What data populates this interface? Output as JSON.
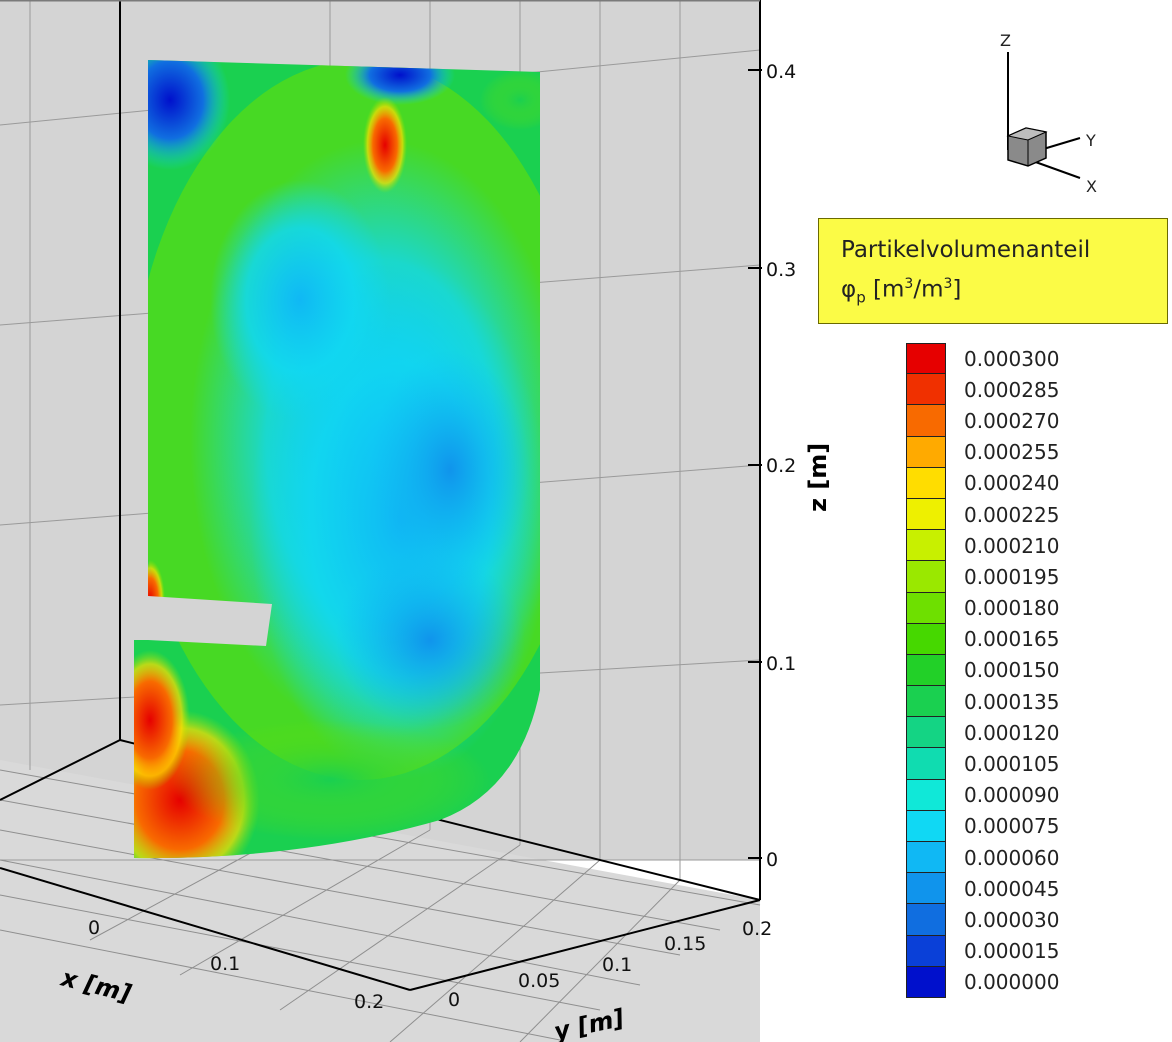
{
  "chart_data": {
    "type": "heatmap",
    "title": "",
    "xlabel": "x [m]",
    "ylabel": "y [m]",
    "zlabel": "z [m]",
    "x_ticks": [
      "0",
      "0.1",
      "0.2"
    ],
    "y_ticks": [
      "0",
      "0.05",
      "0.1",
      "0.15",
      "0.2"
    ],
    "z_ticks": [
      "0",
      "0.1",
      "0.2",
      "0.3",
      "0.4"
    ],
    "zlim": [
      0,
      0.4
    ],
    "grid": true,
    "legend": {
      "title_line1": "Partikelvolumenanteil",
      "title_line2_symbol": "φ",
      "title_line2_sub": "p",
      "title_line2_unit_a": " [m",
      "title_line2_sup_a": "3",
      "title_line2_unit_b": "/m",
      "title_line2_sup_b": "3",
      "title_line2_close": "]",
      "placement": "right",
      "levels": [
        {
          "value": 0.0003,
          "label": "0.000300",
          "color": "#e60000"
        },
        {
          "value": 0.000285,
          "label": "0.000285",
          "color": "#f03000"
        },
        {
          "value": 0.00027,
          "label": "0.000270",
          "color": "#f86a00"
        },
        {
          "value": 0.000255,
          "label": "0.000255",
          "color": "#ffaa00"
        },
        {
          "value": 0.00024,
          "label": "0.000240",
          "color": "#ffdd00"
        },
        {
          "value": 0.000225,
          "label": "0.000225",
          "color": "#eef000"
        },
        {
          "value": 0.00021,
          "label": "0.000210",
          "color": "#c8f000"
        },
        {
          "value": 0.000195,
          "label": "0.000195",
          "color": "#9ae800"
        },
        {
          "value": 0.00018,
          "label": "0.000180",
          "color": "#6ee000"
        },
        {
          "value": 0.000165,
          "label": "0.000165",
          "color": "#46d800"
        },
        {
          "value": 0.00015,
          "label": "0.000150",
          "color": "#22d028"
        },
        {
          "value": 0.000135,
          "label": "0.000135",
          "color": "#1ad050"
        },
        {
          "value": 0.00012,
          "label": "0.000120",
          "color": "#14d484"
        },
        {
          "value": 0.000105,
          "label": "0.000105",
          "color": "#10dcb0"
        },
        {
          "value": 9e-05,
          "label": "0.000090",
          "color": "#10e8d8"
        },
        {
          "value": 7.5e-05,
          "label": "0.000075",
          "color": "#10d8f4"
        },
        {
          "value": 6e-05,
          "label": "0.000060",
          "color": "#10b8f4"
        },
        {
          "value": 4.5e-05,
          "label": "0.000045",
          "color": "#1094ec"
        },
        {
          "value": 3e-05,
          "label": "0.000030",
          "color": "#106ee0"
        },
        {
          "value": 1.5e-05,
          "label": "0.000015",
          "color": "#0a40d8"
        },
        {
          "value": 0.0,
          "label": "0.000000",
          "color": "#0010cc"
        }
      ]
    },
    "triad": {
      "z": "Z",
      "y": "Y",
      "x": "X"
    }
  }
}
